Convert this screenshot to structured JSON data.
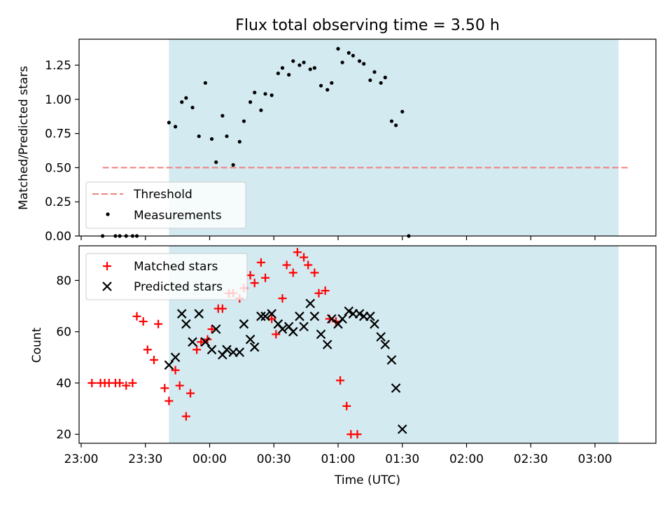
{
  "chart_data": [
    {
      "type": "scatter",
      "title": "Flux total observing time = 3.50 h",
      "ylabel": "Matched/Predicted stars",
      "xlabel": "",
      "ylim": [
        0,
        1.44
      ],
      "yticks": [
        "0.00",
        "0.25",
        "0.50",
        "0.75",
        "1.00",
        "1.25"
      ],
      "grid": false,
      "legend_position": "lower-left",
      "shaded_interval": [
        "23:41",
        "03:11"
      ],
      "shade_color": "#d3eaf1",
      "threshold": {
        "label": "Threshold",
        "value": 0.5,
        "x_range": [
          "23:10",
          "03:16"
        ],
        "color": "#f08080"
      },
      "series": [
        {
          "name": "Measurements",
          "color": "#000000",
          "points": [
            [
              "23:10",
              0.0
            ],
            [
              "23:16",
              0.0
            ],
            [
              "23:18",
              0.0
            ],
            [
              "23:21",
              0.0
            ],
            [
              "23:24",
              0.0
            ],
            [
              "23:26",
              0.0
            ],
            [
              "23:41",
              0.83
            ],
            [
              "23:44",
              0.8
            ],
            [
              "23:47",
              0.98
            ],
            [
              "23:49",
              1.01
            ],
            [
              "23:52",
              0.94
            ],
            [
              "23:55",
              0.73
            ],
            [
              "23:58",
              1.12
            ],
            [
              "00:01",
              0.71
            ],
            [
              "00:03",
              0.54
            ],
            [
              "00:06",
              0.88
            ],
            [
              "00:08",
              0.73
            ],
            [
              "00:11",
              0.52
            ],
            [
              "00:14",
              0.69
            ],
            [
              "00:16",
              0.84
            ],
            [
              "00:19",
              0.98
            ],
            [
              "00:21",
              1.05
            ],
            [
              "00:24",
              0.92
            ],
            [
              "00:26",
              1.04
            ],
            [
              "00:29",
              1.03
            ],
            [
              "00:32",
              1.19
            ],
            [
              "00:34",
              1.23
            ],
            [
              "00:37",
              1.18
            ],
            [
              "00:39",
              1.28
            ],
            [
              "00:42",
              1.25
            ],
            [
              "00:44",
              1.27
            ],
            [
              "00:47",
              1.22
            ],
            [
              "00:49",
              1.23
            ],
            [
              "00:52",
              1.1
            ],
            [
              "00:55",
              1.07
            ],
            [
              "00:57",
              1.12
            ],
            [
              "01:00",
              1.37
            ],
            [
              "01:02",
              1.27
            ],
            [
              "01:05",
              1.34
            ],
            [
              "01:07",
              1.32
            ],
            [
              "01:10",
              1.28
            ],
            [
              "01:12",
              1.26
            ],
            [
              "01:15",
              1.14
            ],
            [
              "01:17",
              1.2
            ],
            [
              "01:20",
              1.12
            ],
            [
              "01:22",
              1.16
            ],
            [
              "01:25",
              0.84
            ],
            [
              "01:27",
              0.81
            ],
            [
              "01:30",
              0.91
            ],
            [
              "01:33",
              0.0
            ]
          ]
        }
      ]
    },
    {
      "type": "scatter",
      "title": "",
      "ylabel": "Count",
      "xlabel": "Time (UTC)",
      "ylim": [
        16.5,
        93.5
      ],
      "yticks": [
        "20",
        "40",
        "60",
        "80"
      ],
      "x_tick_labels": [
        "23:00",
        "23:30",
        "00:00",
        "00:30",
        "01:00",
        "01:30",
        "02:00",
        "02:30",
        "03:00"
      ],
      "grid": false,
      "legend_position": "upper-left",
      "shaded_interval": [
        "23:41",
        "03:11"
      ],
      "shade_color": "#d3eaf1",
      "series": [
        {
          "name": "Matched stars",
          "marker": "plus",
          "color": "#ff0000",
          "points": [
            [
              "23:05",
              40
            ],
            [
              "23:09",
              40
            ],
            [
              "23:11",
              40
            ],
            [
              "23:13",
              40
            ],
            [
              "23:16",
              40
            ],
            [
              "23:18",
              40
            ],
            [
              "23:21",
              39
            ],
            [
              "23:24",
              40
            ],
            [
              "23:26",
              66
            ],
            [
              "23:29",
              64
            ],
            [
              "23:31",
              53
            ],
            [
              "23:34",
              49
            ],
            [
              "23:36",
              63
            ],
            [
              "23:39",
              38
            ],
            [
              "23:41",
              33
            ],
            [
              "23:44",
              45
            ],
            [
              "23:46",
              39
            ],
            [
              "23:49",
              27
            ],
            [
              "23:51",
              36
            ],
            [
              "23:54",
              53
            ],
            [
              "23:56",
              56
            ],
            [
              "23:59",
              57
            ],
            [
              "00:01",
              61
            ],
            [
              "00:04",
              69
            ],
            [
              "00:06",
              69
            ],
            [
              "00:09",
              75
            ],
            [
              "00:11",
              75
            ],
            [
              "00:14",
              73
            ],
            [
              "00:16",
              77
            ],
            [
              "00:19",
              82
            ],
            [
              "00:21",
              79
            ],
            [
              "00:24",
              87
            ],
            [
              "00:26",
              81
            ],
            [
              "00:29",
              65
            ],
            [
              "00:31",
              59
            ],
            [
              "00:34",
              73
            ],
            [
              "00:36",
              86
            ],
            [
              "00:39",
              83
            ],
            [
              "00:41",
              91
            ],
            [
              "00:44",
              89
            ],
            [
              "00:46",
              86
            ],
            [
              "00:49",
              83
            ],
            [
              "00:51",
              75
            ],
            [
              "00:54",
              76
            ],
            [
              "00:56",
              65
            ],
            [
              "00:59",
              64
            ],
            [
              "01:01",
              41
            ],
            [
              "01:04",
              31
            ],
            [
              "01:06",
              20
            ],
            [
              "01:09",
              20
            ]
          ]
        },
        {
          "name": "Predicted stars",
          "marker": "x",
          "color": "#000000",
          "points": [
            [
              "23:41",
              47
            ],
            [
              "23:44",
              50
            ],
            [
              "23:47",
              67
            ],
            [
              "23:49",
              63
            ],
            [
              "23:52",
              56
            ],
            [
              "23:55",
              67
            ],
            [
              "23:58",
              56
            ],
            [
              "00:01",
              53
            ],
            [
              "00:03",
              61
            ],
            [
              "00:06",
              51
            ],
            [
              "00:08",
              53
            ],
            [
              "00:11",
              52
            ],
            [
              "00:14",
              52
            ],
            [
              "00:16",
              63
            ],
            [
              "00:19",
              57
            ],
            [
              "00:21",
              54
            ],
            [
              "00:24",
              66
            ],
            [
              "00:26",
              66
            ],
            [
              "00:29",
              67
            ],
            [
              "00:32",
              63
            ],
            [
              "00:34",
              61
            ],
            [
              "00:37",
              62
            ],
            [
              "00:39",
              60
            ],
            [
              "00:42",
              66
            ],
            [
              "00:44",
              62
            ],
            [
              "00:47",
              71
            ],
            [
              "00:49",
              66
            ],
            [
              "00:52",
              59
            ],
            [
              "00:55",
              55
            ],
            [
              "00:57",
              65
            ],
            [
              "01:00",
              63
            ],
            [
              "01:02",
              65
            ],
            [
              "01:05",
              68
            ],
            [
              "01:07",
              67
            ],
            [
              "01:10",
              67
            ],
            [
              "01:12",
              66
            ],
            [
              "01:15",
              66
            ],
            [
              "01:17",
              63
            ],
            [
              "01:20",
              58
            ],
            [
              "01:22",
              55
            ],
            [
              "01:25",
              49
            ],
            [
              "01:27",
              38
            ],
            [
              "01:30",
              22
            ]
          ]
        }
      ]
    }
  ]
}
